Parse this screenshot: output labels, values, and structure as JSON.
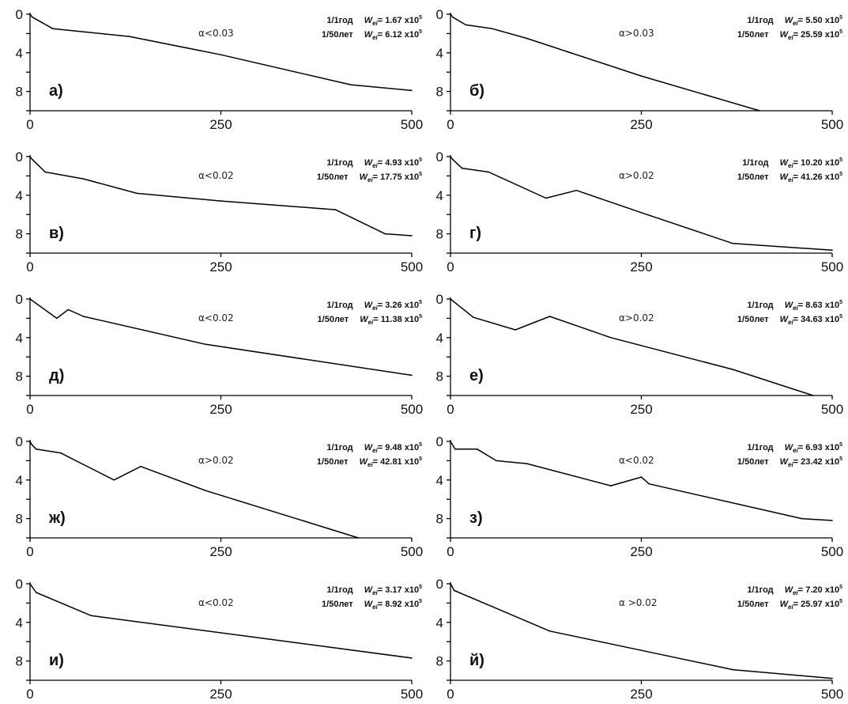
{
  "chart_data": [
    {
      "type": "line",
      "panel_tag": "а)",
      "alpha_label": "α<0.03",
      "rows": [
        {
          "period": "1/1год",
          "sub": "ei",
          "value": "= 1.67 x10",
          "exp": "5"
        },
        {
          "period": "1/50лет",
          "sub": "ei",
          "value": "= 6.12 x10",
          "exp": "5"
        }
      ],
      "xlim": [
        0,
        500
      ],
      "ylim": [
        0,
        10
      ],
      "x_ticks": [
        "0",
        "250",
        "500"
      ],
      "y_ticks": [
        "0",
        "4",
        "8"
      ],
      "x": [
        0,
        3,
        30,
        130,
        250,
        420,
        500
      ],
      "y": [
        0,
        0.3,
        1.5,
        2.3,
        4.2,
        7.3,
        7.9
      ]
    },
    {
      "type": "line",
      "panel_tag": "б)",
      "alpha_label": "α>0.03",
      "rows": [
        {
          "period": "1/1год",
          "sub": "ei",
          "value": "= 5.50 x10",
          "exp": "5"
        },
        {
          "period": "1/50лет",
          "sub": "ei",
          "value": "= 25.59 x10",
          "exp": "5"
        }
      ],
      "xlim": [
        0,
        500
      ],
      "ylim": [
        0,
        10
      ],
      "x_ticks": [
        "0",
        "250",
        "500"
      ],
      "y_ticks": [
        "0",
        "4",
        "8"
      ],
      "x": [
        0,
        3,
        20,
        55,
        100,
        250,
        405
      ],
      "y": [
        0,
        0.3,
        1.1,
        1.5,
        2.5,
        6.4,
        10.0
      ]
    },
    {
      "type": "line",
      "panel_tag": "в)",
      "alpha_label": "α<0.02",
      "rows": [
        {
          "period": "1/1год",
          "sub": "ei",
          "value": "= 4.93 x10",
          "exp": "5"
        },
        {
          "period": "1/50лет",
          "sub": "ei",
          "value": "= 17.75 x10",
          "exp": "5"
        }
      ],
      "xlim": [
        0,
        500
      ],
      "ylim": [
        0,
        10
      ],
      "x_ticks": [
        "0",
        "250",
        "500"
      ],
      "y_ticks": [
        "0",
        "4",
        "8"
      ],
      "x": [
        0,
        3,
        20,
        70,
        140,
        250,
        400,
        465,
        500
      ],
      "y": [
        0,
        0.3,
        1.6,
        2.3,
        3.8,
        4.6,
        5.5,
        8.0,
        8.2
      ]
    },
    {
      "type": "line",
      "panel_tag": "г)",
      "alpha_label": "α>0.02",
      "rows": [
        {
          "period": "1/1год",
          "sub": "ei",
          "value": "= 10.20 x10",
          "exp": "5"
        },
        {
          "period": "1/50лет",
          "sub": "ei",
          "value": "= 41.26 x10",
          "exp": "5"
        }
      ],
      "xlim": [
        0,
        500
      ],
      "ylim": [
        0,
        10
      ],
      "x_ticks": [
        "0",
        "250",
        "500"
      ],
      "y_ticks": [
        "0",
        "4",
        "8"
      ],
      "x": [
        0,
        3,
        15,
        50,
        125,
        165,
        250,
        370,
        500
      ],
      "y": [
        0,
        0.3,
        1.2,
        1.6,
        4.3,
        3.5,
        5.8,
        9.0,
        9.7
      ]
    },
    {
      "type": "line",
      "panel_tag": "д)",
      "alpha_label": "α<0.02",
      "rows": [
        {
          "period": "1/1год",
          "sub": "ei",
          "value": "= 3.26 x10",
          "exp": "5"
        },
        {
          "period": "1/50лет",
          "sub": "ei",
          "value": "= 11.38 x10",
          "exp": "5"
        }
      ],
      "xlim": [
        0,
        500
      ],
      "ylim": [
        0,
        10
      ],
      "x_ticks": [
        "0",
        "250",
        "500"
      ],
      "y_ticks": [
        "0",
        "4",
        "8"
      ],
      "x": [
        0,
        35,
        50,
        70,
        230,
        500
      ],
      "y": [
        0,
        2.0,
        1.1,
        1.8,
        4.7,
        7.9
      ]
    },
    {
      "type": "line",
      "panel_tag": "е)",
      "alpha_label": "α>0.02",
      "rows": [
        {
          "period": "1/1год",
          "sub": "ei",
          "value": "= 8.63 x10",
          "exp": "5"
        },
        {
          "period": "1/50лет",
          "sub": "ei",
          "value": "= 34.63 x10",
          "exp": "5"
        }
      ],
      "xlim": [
        0,
        500
      ],
      "ylim": [
        0,
        10
      ],
      "x_ticks": [
        "0",
        "250",
        "500"
      ],
      "y_ticks": [
        "0",
        "4",
        "8"
      ],
      "x": [
        0,
        30,
        85,
        130,
        210,
        370,
        475
      ],
      "y": [
        0,
        1.9,
        3.2,
        1.8,
        4.0,
        7.3,
        10.0
      ]
    },
    {
      "type": "line",
      "panel_tag": "ж)",
      "alpha_label": "α>0.02",
      "rows": [
        {
          "period": "1/1год",
          "sub": "ei",
          "value": "= 9.48 x10",
          "exp": "5"
        },
        {
          "period": "1/50лет",
          "sub": "ei",
          "value": "= 42.81 x10",
          "exp": "5"
        }
      ],
      "xlim": [
        0,
        500
      ],
      "ylim": [
        0,
        10
      ],
      "x_ticks": [
        "0",
        "250",
        "500"
      ],
      "y_ticks": [
        "0",
        "4",
        "8"
      ],
      "x": [
        0,
        2,
        8,
        40,
        110,
        145,
        230,
        430
      ],
      "y": [
        0,
        0.3,
        0.8,
        1.2,
        4.0,
        2.6,
        5.1,
        10.0
      ]
    },
    {
      "type": "line",
      "panel_tag": "з)",
      "alpha_label": "α<0.02",
      "rows": [
        {
          "period": "1/1год",
          "sub": "ei",
          "value": "= 6.93 x10",
          "exp": "5"
        },
        {
          "period": "1/50лет",
          "sub": "ei",
          "value": "= 23.42 x10",
          "exp": "5"
        }
      ],
      "xlim": [
        0,
        500
      ],
      "ylim": [
        0,
        10
      ],
      "x_ticks": [
        "0",
        "250",
        "500"
      ],
      "y_ticks": [
        "0",
        "4",
        "8"
      ],
      "x": [
        0,
        6,
        35,
        60,
        100,
        210,
        250,
        260,
        460,
        500
      ],
      "y": [
        0,
        0.8,
        0.8,
        2.0,
        2.3,
        4.6,
        3.7,
        4.4,
        8.0,
        8.2
      ]
    },
    {
      "type": "line",
      "panel_tag": "и)",
      "alpha_label": "α<0.02",
      "rows": [
        {
          "period": "1/1год",
          "sub": "ei",
          "value": "= 3.17 x10",
          "exp": "5"
        },
        {
          "period": "1/50лет",
          "sub": "ei",
          "value": "= 8.92 x10",
          "exp": "5"
        }
      ],
      "xlim": [
        0,
        500
      ],
      "ylim": [
        0,
        10
      ],
      "x_ticks": [
        "0",
        "250",
        "500"
      ],
      "y_ticks": [
        "0",
        "4",
        "8"
      ],
      "x": [
        0,
        8,
        80,
        500
      ],
      "y": [
        0,
        0.9,
        3.3,
        7.7
      ]
    },
    {
      "type": "line",
      "panel_tag": "й)",
      "alpha_label": "α >0.02",
      "rows": [
        {
          "period": "1/1год",
          "sub": "ei",
          "value": "= 7.20 x10",
          "exp": "5"
        },
        {
          "period": "1/50лет",
          "sub": "ei",
          "value": "= 25.97 x10",
          "exp": "5"
        }
      ],
      "xlim": [
        0,
        500
      ],
      "ylim": [
        0,
        10
      ],
      "x_ticks": [
        "0",
        "250",
        "500"
      ],
      "y_ticks": [
        "0",
        "4",
        "8"
      ],
      "x": [
        0,
        5,
        130,
        250,
        370,
        500
      ],
      "y": [
        0,
        0.7,
        4.9,
        6.9,
        8.9,
        9.8
      ]
    }
  ]
}
